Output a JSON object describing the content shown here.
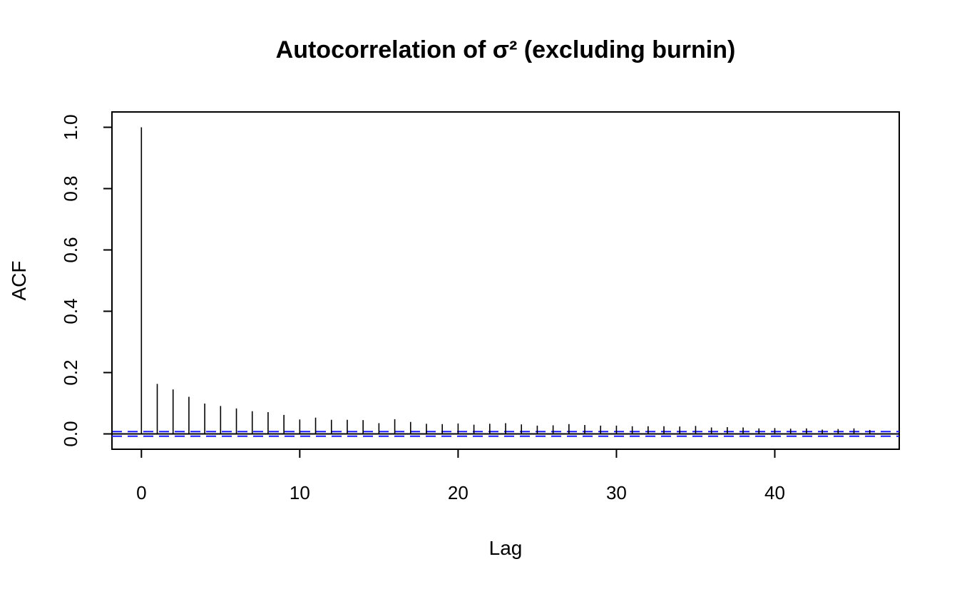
{
  "chart_data": {
    "type": "bar",
    "title": "Autocorrelation of σ² (excluding burnin)",
    "xlabel": "Lag",
    "ylabel": "ACF",
    "xlim": [
      -1.86,
      47.86
    ],
    "ylim": [
      -0.05,
      1.05
    ],
    "xticks": [
      0,
      10,
      20,
      30,
      40
    ],
    "yticks": [
      0.0,
      0.2,
      0.4,
      0.6,
      0.8,
      1.0
    ],
    "ytick_labels": [
      "0.0",
      "0.2",
      "0.4",
      "0.6",
      "0.8",
      "1.0"
    ],
    "lags": [
      0,
      1,
      2,
      3,
      4,
      5,
      6,
      7,
      8,
      9,
      10,
      11,
      12,
      13,
      14,
      15,
      16,
      17,
      18,
      19,
      20,
      21,
      22,
      23,
      24,
      25,
      26,
      27,
      28,
      29,
      30,
      31,
      32,
      33,
      34,
      35,
      36,
      37,
      38,
      39,
      40,
      41,
      42,
      43,
      44,
      45,
      46
    ],
    "acf": [
      1.0,
      0.163,
      0.145,
      0.121,
      0.099,
      0.091,
      0.083,
      0.074,
      0.071,
      0.062,
      0.047,
      0.053,
      0.046,
      0.046,
      0.045,
      0.035,
      0.048,
      0.039,
      0.033,
      0.032,
      0.034,
      0.03,
      0.033,
      0.035,
      0.031,
      0.027,
      0.028,
      0.032,
      0.029,
      0.027,
      0.027,
      0.025,
      0.025,
      0.025,
      0.024,
      0.026,
      0.021,
      0.022,
      0.021,
      0.018,
      0.019,
      0.017,
      0.018,
      0.014,
      0.016,
      0.018,
      0.013
    ],
    "confidence_band": [
      -0.0075,
      0.0075
    ],
    "colors": {
      "bars": "#000000",
      "confidence_band": "#1a1aff",
      "axes": "#000000"
    }
  }
}
